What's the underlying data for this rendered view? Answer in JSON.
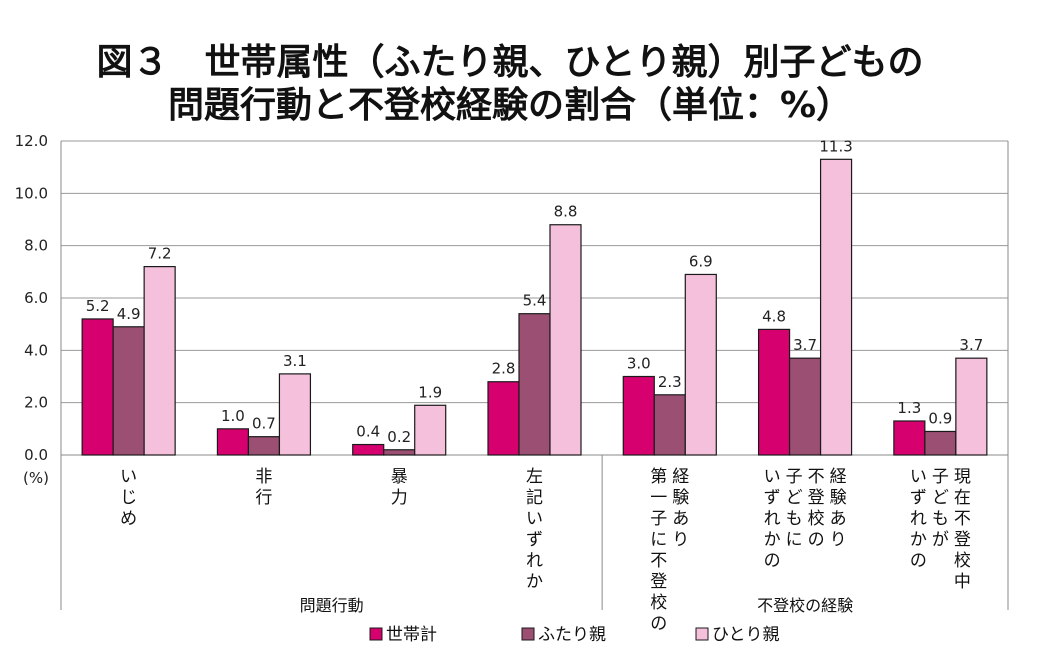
{
  "chart_data": {
    "type": "bar",
    "title_lines": [
      "図３　世帯属性（ふたり親、ひとり親）別子どもの",
      "問題行動と不登校経験の割合（単位：%）"
    ],
    "ylabel": "(%)",
    "ylim": [
      0,
      12
    ],
    "y_ticks": [
      "0.0",
      "2.0",
      "4.0",
      "6.0",
      "8.0",
      "10.0",
      "12.0"
    ],
    "grid": true,
    "legend_position": "bottom",
    "categories": [
      [
        "いじめ"
      ],
      [
        "非行"
      ],
      [
        "暴力"
      ],
      [
        "左記いずれか"
      ],
      [
        "経験あり",
        "第一子に不登校の"
      ],
      [
        "経験あり",
        "不登校の",
        "子どもに",
        "いずれかの"
      ],
      [
        "現在不登校中",
        "子どもが",
        "いずれかの"
      ]
    ],
    "groups": [
      {
        "label": "問題行動",
        "start": 0,
        "end": 3
      },
      {
        "label": "不登校の経験",
        "start": 4,
        "end": 6
      }
    ],
    "series": [
      {
        "name": "世帯計",
        "color": "#d6006f",
        "values": [
          5.2,
          1.0,
          0.4,
          2.8,
          3.0,
          4.8,
          1.3
        ]
      },
      {
        "name": "ふたり親",
        "color": "#9b4f72",
        "values": [
          4.9,
          0.7,
          0.2,
          5.4,
          2.3,
          3.7,
          0.9
        ]
      },
      {
        "name": "ひとり親",
        "color": "#f4c0db",
        "values": [
          7.2,
          3.1,
          1.9,
          8.8,
          6.9,
          11.3,
          3.7
        ]
      }
    ],
    "value_labels": [
      [
        "5.2",
        "1.0",
        "0.4",
        "2.8",
        "3.0",
        "4.8",
        "1.3"
      ],
      [
        "4.9",
        "0.7",
        "0.2",
        "5.4",
        "2.3",
        "3.7",
        "0.9"
      ],
      [
        "7.2",
        "3.1",
        "1.9",
        "8.8",
        "6.9",
        "11.3",
        "3.7"
      ]
    ]
  }
}
